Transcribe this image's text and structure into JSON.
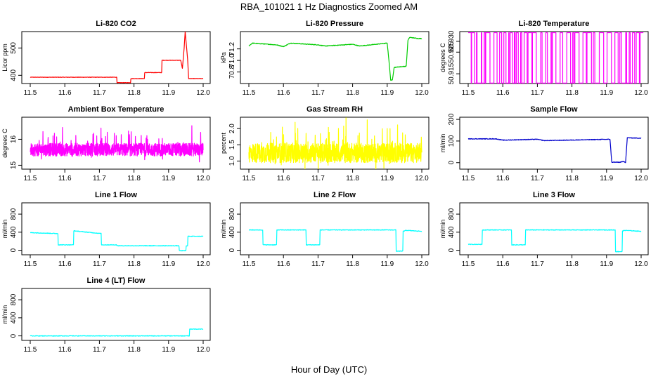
{
  "figure": {
    "title": "RBA_101021  1 Hz Diagnostics Zoomed AM",
    "xlabel": "Hour of Day (UTC)"
  },
  "chart_data": [
    {
      "type": "line",
      "title": "Li-820 CO2",
      "ylabel": "Licor ppm",
      "color": "#ff0000",
      "xlim": [
        11.5,
        12.0
      ],
      "ylim": [
        370,
        560
      ],
      "yticks": [
        400,
        500
      ],
      "x": [
        11.5,
        11.75,
        11.751,
        11.79,
        11.791,
        11.83,
        11.831,
        11.88,
        11.881,
        11.935,
        11.94,
        11.945,
        11.948,
        11.955,
        11.958,
        12.0
      ],
      "values": [
        393,
        393,
        373,
        373,
        388,
        388,
        410,
        410,
        455,
        455,
        425,
        500,
        560,
        460,
        388,
        388
      ]
    },
    {
      "type": "line",
      "title": "Li-820 Pressure",
      "ylabel": "kPa",
      "color": "#00cc00",
      "xlim": [
        11.5,
        12.0
      ],
      "ylim": [
        70.6,
        71.5
      ],
      "yticks": [
        70.8,
        71.0,
        71.2
      ],
      "x": [
        11.5,
        11.51,
        11.58,
        11.6,
        11.62,
        11.7,
        11.72,
        11.8,
        11.82,
        11.9,
        11.905,
        11.91,
        11.915,
        11.92,
        11.955,
        11.96,
        11.965,
        11.99,
        12.0
      ],
      "values": [
        71.25,
        71.3,
        71.27,
        71.24,
        71.3,
        71.27,
        71.25,
        71.28,
        71.25,
        71.3,
        71.0,
        70.66,
        70.66,
        70.88,
        70.9,
        71.35,
        71.4,
        71.38,
        71.38
      ]
    },
    {
      "type": "line",
      "title": "Li-820 Temperature",
      "ylabel": "degrees C",
      "color": "#ff00ff",
      "xlim": [
        11.5,
        12.0
      ],
      "ylim": [
        50.9105,
        50.9345
      ],
      "yticks": [
        50.915,
        50.925,
        50.93
      ],
      "x": [
        11.5,
        12.0
      ],
      "values": [
        50.9107,
        50.934
      ]
    },
    {
      "type": "line",
      "title": "Ambient Box Temperature",
      "ylabel": "degrees C",
      "color": "#ff00ff",
      "xlim": [
        11.5,
        12.0
      ],
      "ylim": [
        14.85,
        16.85
      ],
      "yticks": [
        15.0,
        16.0
      ],
      "x": [
        11.5,
        12.0
      ],
      "values": [
        15.6,
        15.6
      ]
    },
    {
      "type": "line",
      "title": "Gas Stream RH",
      "ylabel": "percent",
      "color": "#ffff00",
      "xlim": [
        11.5,
        12.0
      ],
      "ylim": [
        0.75,
        2.35
      ],
      "yticks": [
        1.0,
        1.5,
        2.0
      ],
      "x": [
        11.5,
        12.0
      ],
      "values": [
        1.25,
        1.25
      ]
    },
    {
      "type": "line",
      "title": "Sample Flow",
      "ylabel": "ml/min",
      "color": "#0000cc",
      "xlim": [
        11.5,
        12.0
      ],
      "ylim": [
        -30,
        210
      ],
      "yticks": [
        0,
        100,
        200
      ],
      "x": [
        11.5,
        11.58,
        11.6,
        11.7,
        11.72,
        11.91,
        11.915,
        11.94,
        11.95,
        11.955,
        11.96,
        12.0
      ],
      "values": [
        110,
        110,
        104,
        108,
        102,
        108,
        2,
        2,
        6,
        0,
        115,
        113
      ]
    },
    {
      "type": "line",
      "title": "Line 1 Flow",
      "ylabel": "ml/min",
      "color": "#00ffff",
      "xlim": [
        11.5,
        12.0
      ],
      "ylim": [
        -100,
        1050
      ],
      "yticks": [
        0,
        400,
        800
      ],
      "x": [
        11.5,
        11.58,
        11.581,
        11.625,
        11.626,
        11.705,
        11.706,
        11.75,
        11.751,
        11.93,
        11.931,
        11.95,
        11.951,
        11.955,
        11.956,
        12.0
      ],
      "values": [
        390,
        370,
        120,
        120,
        430,
        370,
        120,
        120,
        100,
        100,
        -10,
        -10,
        100,
        100,
        310,
        310
      ]
    },
    {
      "type": "line",
      "title": "Line 2 Flow",
      "ylabel": "ml/min",
      "color": "#00ffff",
      "xlim": [
        11.5,
        12.0
      ],
      "ylim": [
        -100,
        1050
      ],
      "yticks": [
        0,
        400,
        800
      ],
      "x": [
        11.5,
        11.54,
        11.541,
        11.58,
        11.581,
        11.665,
        11.666,
        11.705,
        11.706,
        11.925,
        11.926,
        11.945,
        11.946,
        11.955,
        12.0
      ],
      "values": [
        450,
        450,
        120,
        120,
        450,
        450,
        120,
        120,
        450,
        450,
        -20,
        -20,
        420,
        440,
        420
      ]
    },
    {
      "type": "line",
      "title": "Line 3 Flow",
      "ylabel": "ml/min",
      "color": "#00ffff",
      "xlim": [
        11.5,
        12.0
      ],
      "ylim": [
        -100,
        1050
      ],
      "yticks": [
        0,
        400,
        800
      ],
      "x": [
        11.5,
        11.54,
        11.541,
        11.625,
        11.626,
        11.665,
        11.666,
        11.925,
        11.926,
        11.945,
        11.946,
        11.955,
        12.0
      ],
      "values": [
        130,
        130,
        450,
        450,
        120,
        120,
        450,
        450,
        -30,
        -30,
        430,
        440,
        420
      ]
    },
    {
      "type": "line",
      "title": "Line 4 (LT) Flow",
      "ylabel": "ml/min",
      "color": "#00ffff",
      "xlim": [
        11.5,
        12.0
      ],
      "ylim": [
        -100,
        1050
      ],
      "yticks": [
        0,
        400,
        800
      ],
      "x": [
        11.5,
        11.96,
        11.961,
        12.0
      ],
      "values": [
        0,
        0,
        150,
        150
      ]
    }
  ]
}
